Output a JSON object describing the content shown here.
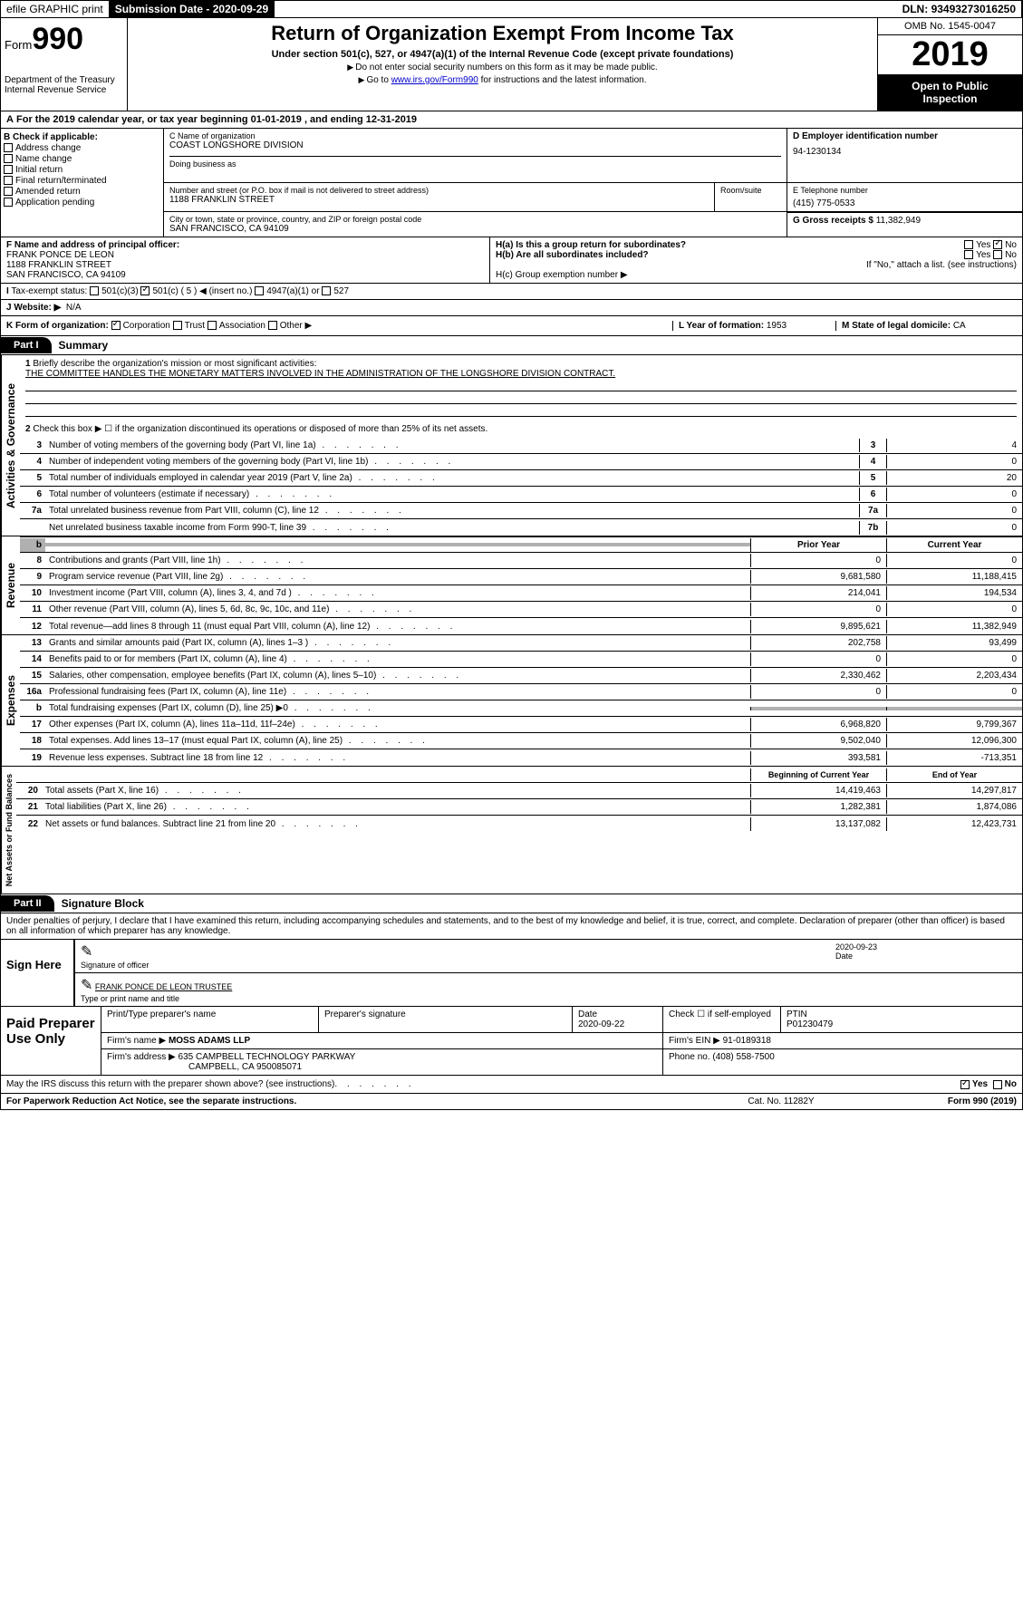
{
  "topbar": {
    "efile": "efile GRAPHIC print",
    "subdate_label": "Submission Date - ",
    "subdate": "2020-09-29",
    "dln_label": "DLN: ",
    "dln": "93493273016250"
  },
  "header": {
    "form_word": "Form",
    "form_no": "990",
    "dept1": "Department of the Treasury",
    "dept2": "Internal Revenue Service",
    "title": "Return of Organization Exempt From Income Tax",
    "subtitle": "Under section 501(c), 527, or 4947(a)(1) of the Internal Revenue Code (except private foundations)",
    "note1": "Do not enter social security numbers on this form as it may be made public.",
    "note2_pre": "Go to ",
    "note2_link": "www.irs.gov/Form990",
    "note2_post": " for instructions and the latest information.",
    "omb": "OMB No. 1545-0047",
    "year": "2019",
    "open": "Open to Public Inspection"
  },
  "period": {
    "text": "For the 2019 calendar year, or tax year beginning 01-01-2019  , and ending 12-31-2019",
    "prefix": "A"
  },
  "secB": {
    "title": "B Check if applicable:",
    "items": [
      "Address change",
      "Name change",
      "Initial return",
      "Final return/terminated",
      "Amended return",
      "Application pending"
    ]
  },
  "secC": {
    "name_label": "C Name of organization",
    "name": "COAST LONGSHORE DIVISION",
    "dba_label": "Doing business as",
    "addr_label": "Number and street (or P.O. box if mail is not delivered to street address)",
    "room_label": "Room/suite",
    "addr": "1188 FRANKLIN STREET",
    "city_label": "City or town, state or province, country, and ZIP or foreign postal code",
    "city": "SAN FRANCISCO, CA  94109"
  },
  "secD": {
    "label": "D Employer identification number",
    "val": "94-1230134"
  },
  "secE": {
    "label": "E Telephone number",
    "val": "(415) 775-0533"
  },
  "secG": {
    "label": "G Gross receipts $",
    "val": "11,382,949"
  },
  "secF": {
    "label": "F  Name and address of principal officer:",
    "name": "FRANK PONCE DE LEON",
    "addr": "1188 FRANKLIN STREET",
    "city": "SAN FRANCISCO, CA  94109"
  },
  "secH": {
    "a": "H(a)  Is this a group return for subordinates?",
    "b": "H(b)  Are all subordinates included?",
    "b_note": "If \"No,\" attach a list. (see instructions)",
    "c": "H(c)  Group exemption number ▶",
    "yes": "Yes",
    "no": "No"
  },
  "secI": {
    "label": "Tax-exempt status:",
    "opts": [
      "501(c)(3)",
      "501(c) ( 5 ) ◀ (insert no.)",
      "4947(a)(1) or",
      "527"
    ]
  },
  "secJ": {
    "label": "J Website: ▶",
    "val": "N/A"
  },
  "secK": {
    "label": "K Form of organization:",
    "opts": [
      "Corporation",
      "Trust",
      "Association",
      "Other ▶"
    ]
  },
  "secL": {
    "label": "L Year of formation:",
    "val": "1953"
  },
  "secM": {
    "label": "M State of legal domicile:",
    "val": "CA"
  },
  "part1": {
    "label": "Part I",
    "title": "Summary"
  },
  "summary": {
    "q1": "Briefly describe the organization's mission or most significant activities:",
    "mission": "THE COMMITTEE HANDLES THE MONETARY MATTERS INVOLVED IN THE ADMINISTRATION OF THE LONGSHORE DIVISION CONTRACT.",
    "q2": "Check this box ▶ ☐  if the organization discontinued its operations or disposed of more than 25% of its net assets.",
    "lines": [
      {
        "n": "3",
        "t": "Number of voting members of the governing body (Part VI, line 1a)",
        "box": "3",
        "v": "4"
      },
      {
        "n": "4",
        "t": "Number of independent voting members of the governing body (Part VI, line 1b)",
        "box": "4",
        "v": "0"
      },
      {
        "n": "5",
        "t": "Total number of individuals employed in calendar year 2019 (Part V, line 2a)",
        "box": "5",
        "v": "20"
      },
      {
        "n": "6",
        "t": "Total number of volunteers (estimate if necessary)",
        "box": "6",
        "v": "0"
      },
      {
        "n": "7a",
        "t": "Total unrelated business revenue from Part VIII, column (C), line 12",
        "box": "7a",
        "v": "0"
      },
      {
        "n": "",
        "t": "Net unrelated business taxable income from Form 990-T, line 39",
        "box": "7b",
        "v": "0"
      }
    ],
    "col_prior": "Prior Year",
    "col_curr": "Current Year",
    "revenue": [
      {
        "n": "8",
        "t": "Contributions and grants (Part VIII, line 1h)",
        "p": "0",
        "c": "0"
      },
      {
        "n": "9",
        "t": "Program service revenue (Part VIII, line 2g)",
        "p": "9,681,580",
        "c": "11,188,415"
      },
      {
        "n": "10",
        "t": "Investment income (Part VIII, column (A), lines 3, 4, and 7d )",
        "p": "214,041",
        "c": "194,534"
      },
      {
        "n": "11",
        "t": "Other revenue (Part VIII, column (A), lines 5, 6d, 8c, 9c, 10c, and 11e)",
        "p": "0",
        "c": "0"
      },
      {
        "n": "12",
        "t": "Total revenue—add lines 8 through 11 (must equal Part VIII, column (A), line 12)",
        "p": "9,895,621",
        "c": "11,382,949"
      }
    ],
    "expenses": [
      {
        "n": "13",
        "t": "Grants and similar amounts paid (Part IX, column (A), lines 1–3 )",
        "p": "202,758",
        "c": "93,499"
      },
      {
        "n": "14",
        "t": "Benefits paid to or for members (Part IX, column (A), line 4)",
        "p": "0",
        "c": "0"
      },
      {
        "n": "15",
        "t": "Salaries, other compensation, employee benefits (Part IX, column (A), lines 5–10)",
        "p": "2,330,462",
        "c": "2,203,434"
      },
      {
        "n": "16a",
        "t": "Professional fundraising fees (Part IX, column (A), line 11e)",
        "p": "0",
        "c": "0"
      },
      {
        "n": "b",
        "t": "Total fundraising expenses (Part IX, column (D), line 25) ▶0",
        "p": "",
        "c": "",
        "gray": true
      },
      {
        "n": "17",
        "t": "Other expenses (Part IX, column (A), lines 11a–11d, 11f–24e)",
        "p": "6,968,820",
        "c": "9,799,367"
      },
      {
        "n": "18",
        "t": "Total expenses. Add lines 13–17 (must equal Part IX, column (A), line 25)",
        "p": "9,502,040",
        "c": "12,096,300"
      },
      {
        "n": "19",
        "t": "Revenue less expenses. Subtract line 18 from line 12",
        "p": "393,581",
        "c": "-713,351"
      }
    ],
    "col_begin": "Beginning of Current Year",
    "col_end": "End of Year",
    "netassets": [
      {
        "n": "20",
        "t": "Total assets (Part X, line 16)",
        "p": "14,419,463",
        "c": "14,297,817"
      },
      {
        "n": "21",
        "t": "Total liabilities (Part X, line 26)",
        "p": "1,282,381",
        "c": "1,874,086"
      },
      {
        "n": "22",
        "t": "Net assets or fund balances. Subtract line 21 from line 20",
        "p": "13,137,082",
        "c": "12,423,731"
      }
    ],
    "side_gov": "Activities & Governance",
    "side_rev": "Revenue",
    "side_exp": "Expenses",
    "side_net": "Net Assets or Fund Balances"
  },
  "part2": {
    "label": "Part II",
    "title": "Signature Block"
  },
  "perjury": "Under penalties of perjury, I declare that I have examined this return, including accompanying schedules and statements, and to the best of my knowledge and belief, it is true, correct, and complete. Declaration of preparer (other than officer) is based on all information of which preparer has any knowledge.",
  "sign": {
    "here": "Sign Here",
    "sig_label": "Signature of officer",
    "date": "2020-09-23",
    "date_label": "Date",
    "name": "FRANK PONCE DE LEON  TRUSTEE",
    "name_label": "Type or print name and title"
  },
  "prep": {
    "title": "Paid Preparer Use Only",
    "h1": "Print/Type preparer's name",
    "h2": "Preparer's signature",
    "h3": "Date",
    "h4": "Check ☐ if self-employed",
    "h5": "PTIN",
    "date": "2020-09-22",
    "ptin": "P01230479",
    "firm_label": "Firm's name  ▶",
    "firm": "MOSS ADAMS LLP",
    "ein_label": "Firm's EIN ▶",
    "ein": "91-0189318",
    "addr_label": "Firm's address ▶",
    "addr": "635 CAMPBELL TECHNOLOGY PARKWAY",
    "addr2": "CAMPBELL, CA  950085071",
    "phone_label": "Phone no.",
    "phone": "(408) 558-7500"
  },
  "discuss": "May the IRS discuss this return with the preparer shown above? (see instructions)",
  "footer": {
    "pra": "For Paperwork Reduction Act Notice, see the separate instructions.",
    "cat": "Cat. No. 11282Y",
    "form": "Form 990 (2019)"
  }
}
